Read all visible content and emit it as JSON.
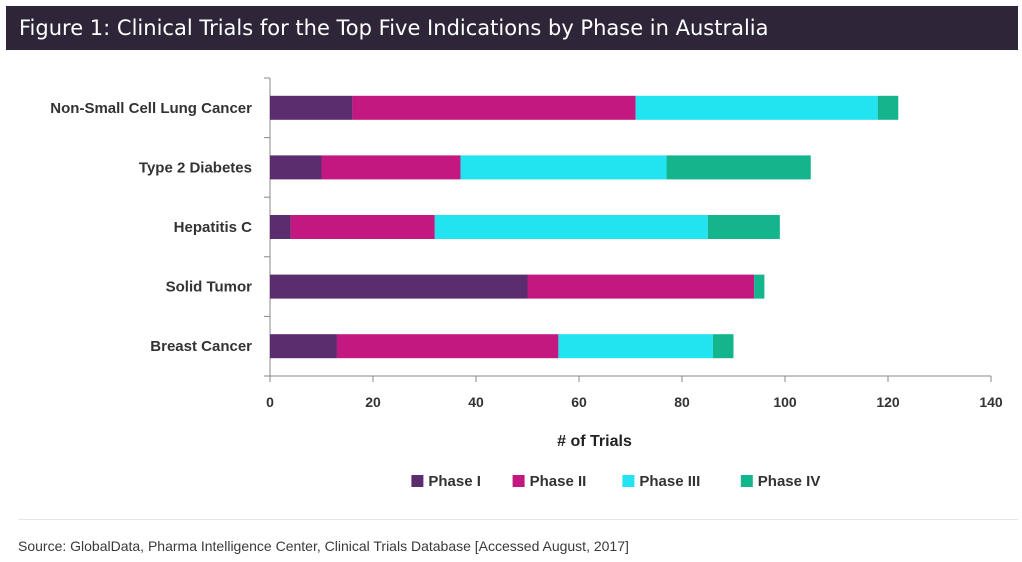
{
  "figure_label": "Figure 1:",
  "figure_title": "Clinical Trials for the Top Five Indications by Phase in Australia",
  "source": "Source: GlobalData, Pharma Intelligence Center, Clinical Trials Database [Accessed August, 2017]",
  "chart_data": {
    "type": "bar",
    "orientation": "horizontal",
    "stacked": true,
    "title": "Clinical Trials for the Top Five Indications by Phase in Australia",
    "xlabel": "# of Trials",
    "ylabel": "",
    "xlim": [
      0,
      140
    ],
    "xticks": [
      0,
      20,
      40,
      60,
      80,
      100,
      120,
      140
    ],
    "grid": false,
    "legend_position": "bottom",
    "categories": [
      "Non-Small Cell Lung Cancer",
      "Type 2 Diabetes",
      "Hepatitis C",
      "Solid Tumor",
      "Breast Cancer"
    ],
    "series": [
      {
        "name": "Phase I",
        "color": "#5b2d6e",
        "values": [
          16,
          10,
          4,
          50,
          13
        ]
      },
      {
        "name": "Phase II",
        "color": "#c2187f",
        "values": [
          55,
          27,
          28,
          44,
          43
        ]
      },
      {
        "name": "Phase III",
        "color": "#22e3f0",
        "values": [
          47,
          40,
          53,
          0,
          30
        ]
      },
      {
        "name": "Phase IV",
        "color": "#14b58c",
        "values": [
          4,
          28,
          14,
          2,
          4
        ]
      }
    ]
  }
}
